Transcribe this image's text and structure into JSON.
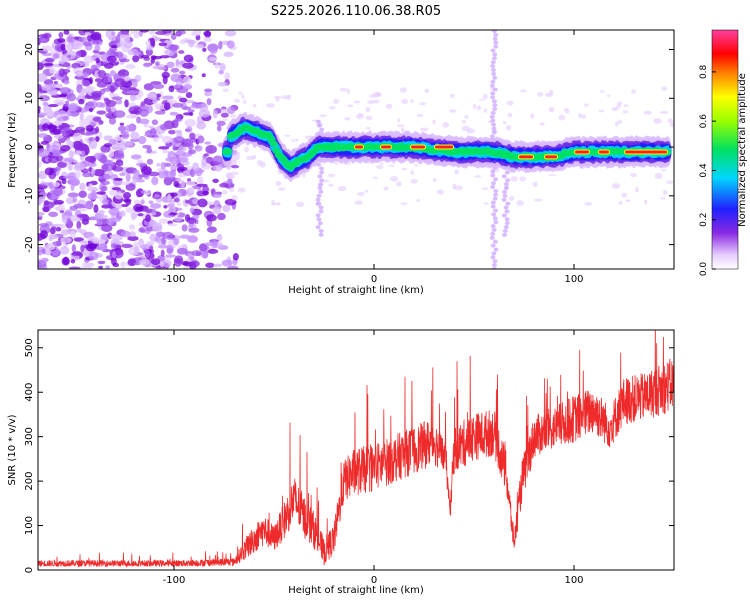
{
  "title": "S225.2026.110.06.38.R05",
  "colors": {
    "line": "#ee2a2a",
    "axis": "#000000"
  },
  "chart_data": [
    {
      "type": "heatmap",
      "name": "spectrogram",
      "xlabel": "Height of straight line (km)",
      "ylabel": "Frequency (Hz)",
      "xlim": [
        -168,
        150
      ],
      "ylim": [
        -25,
        24
      ],
      "xticks": [
        -100,
        0,
        100
      ],
      "yticks": [
        -20,
        -10,
        0,
        10,
        20
      ],
      "colorbar": {
        "label": "Normalized spectral amplitude",
        "range": [
          0.0,
          0.97
        ],
        "ticks": [
          0.0,
          0.2,
          0.4,
          0.6,
          0.8
        ]
      },
      "ridge": [
        {
          "x": -72,
          "y": 2
        },
        {
          "x": -65,
          "y": 4
        },
        {
          "x": -58,
          "y": 3
        },
        {
          "x": -52,
          "y": 2
        },
        {
          "x": -47,
          "y": -2
        },
        {
          "x": -42,
          "y": -4
        },
        {
          "x": -38,
          "y": -3
        },
        {
          "x": -33,
          "y": -2
        },
        {
          "x": -28,
          "y": 0
        },
        {
          "x": -20,
          "y": 0
        },
        {
          "x": -10,
          "y": 0
        },
        {
          "x": 0,
          "y": 0
        },
        {
          "x": 20,
          "y": 0
        },
        {
          "x": 40,
          "y": -1
        },
        {
          "x": 60,
          "y": -1
        },
        {
          "x": 70,
          "y": -2
        },
        {
          "x": 80,
          "y": -2
        },
        {
          "x": 90,
          "y": -2
        },
        {
          "x": 100,
          "y": -1
        },
        {
          "x": 110,
          "y": -1
        },
        {
          "x": 120,
          "y": -1
        },
        {
          "x": 148,
          "y": -1
        }
      ],
      "noise_region_x": [
        -168,
        -75
      ]
    },
    {
      "type": "line",
      "name": "snr",
      "xlabel": "Height of straight line (km)",
      "ylabel": "SNR (10 * v/v)",
      "xlim": [
        -168,
        150
      ],
      "ylim": [
        0,
        540
      ],
      "xticks": [
        -100,
        0,
        100
      ],
      "yticks": [
        0,
        100,
        200,
        300,
        400,
        500
      ],
      "envelope": {
        "x": [
          -168,
          -100,
          -70,
          -62,
          -55,
          -50,
          -45,
          -40,
          -35,
          -30,
          -25,
          -20,
          -15,
          -10,
          0,
          10,
          20,
          30,
          36,
          38,
          40,
          50,
          60,
          66,
          70,
          74,
          80,
          90,
          100,
          110,
          118,
          125,
          135,
          145,
          150
        ],
        "base": [
          15,
          15,
          18,
          60,
          90,
          70,
          110,
          160,
          120,
          90,
          40,
          70,
          200,
          220,
          230,
          250,
          270,
          290,
          250,
          120,
          270,
          300,
          310,
          220,
          60,
          200,
          300,
          320,
          340,
          360,
          320,
          380,
          390,
          410,
          420
        ],
        "amp": [
          12,
          12,
          15,
          50,
          60,
          50,
          70,
          90,
          80,
          70,
          50,
          60,
          80,
          90,
          90,
          90,
          90,
          90,
          60,
          40,
          90,
          90,
          90,
          80,
          40,
          80,
          80,
          80,
          90,
          90,
          80,
          90,
          90,
          100,
          100
        ]
      }
    }
  ]
}
